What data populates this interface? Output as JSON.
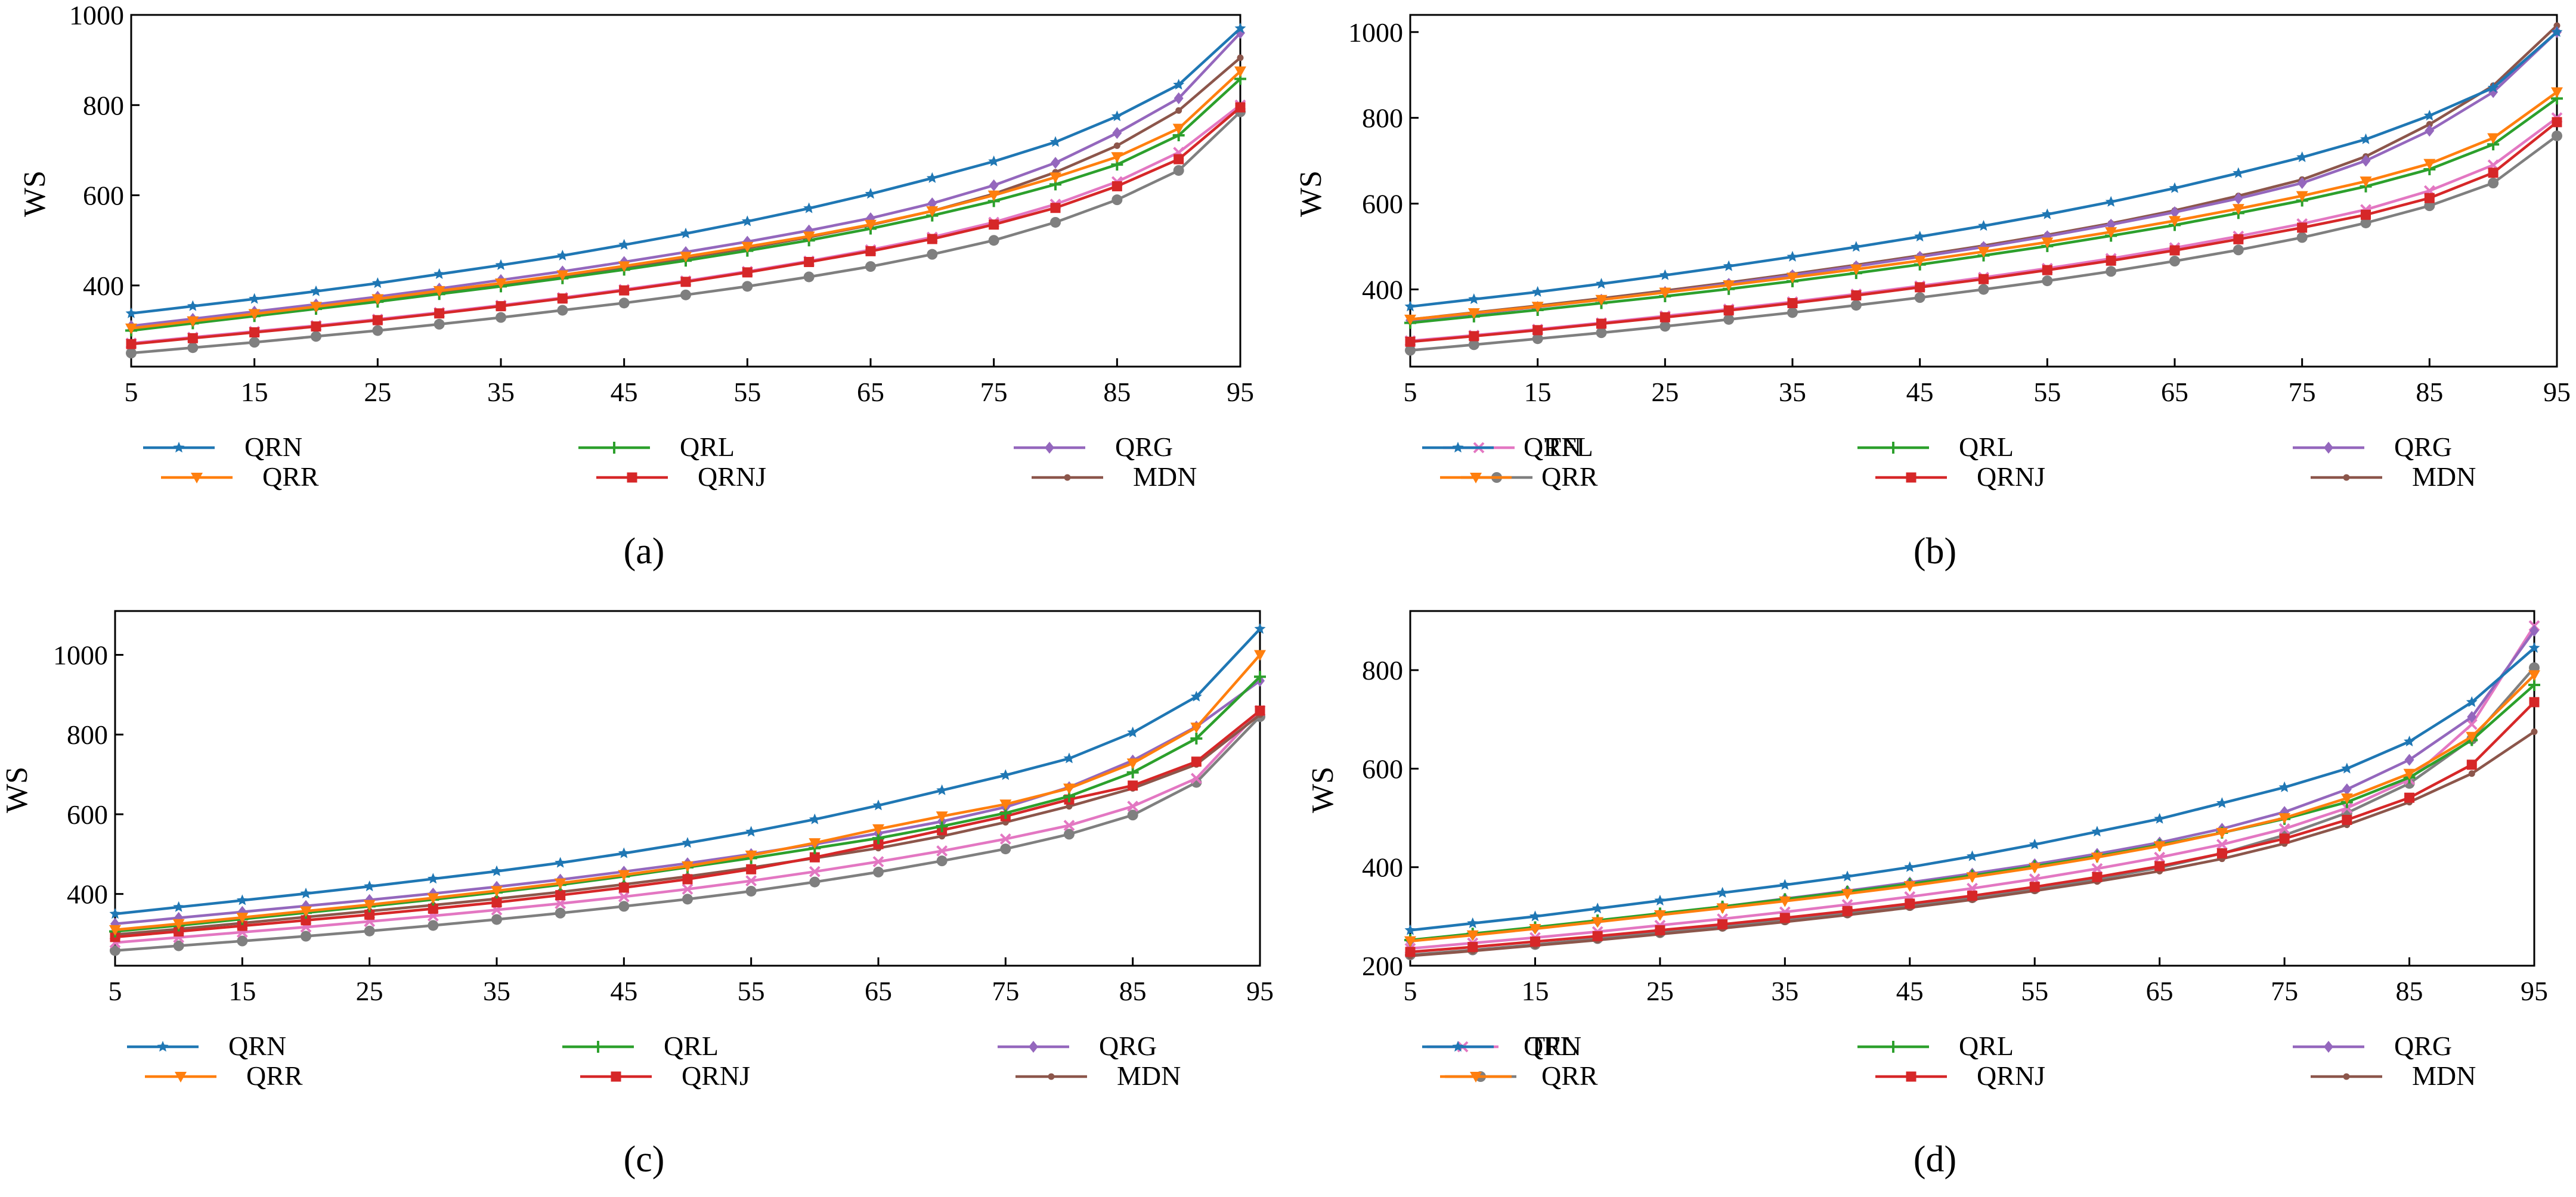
{
  "figure": {
    "panel_labels": [
      "(a)",
      "(b)",
      "(c)",
      "(d)"
    ]
  },
  "legend": {
    "entries": [
      {
        "name": "QRN",
        "color": "#1f77b4",
        "marker": "star"
      },
      {
        "name": "QRR",
        "color": "#ff7f0e",
        "marker": "triangle-down"
      },
      {
        "name": "QRL",
        "color": "#2ca02c",
        "marker": "plus"
      },
      {
        "name": "QRNJ",
        "color": "#d62728",
        "marker": "square"
      },
      {
        "name": "QRG",
        "color": "#9467bd",
        "marker": "diamond"
      },
      {
        "name": "MDN",
        "color": "#8c564b",
        "marker": "dot"
      },
      {
        "name": "TFL",
        "color": "#e377c2",
        "marker": "x"
      },
      {
        "name": "",
        "color": "#7f7f7f",
        "marker": "circle"
      }
    ]
  },
  "chart_data": [
    {
      "type": "line",
      "panel": "(a)",
      "xlabel": "",
      "ylabel": "WS",
      "x": [
        5,
        10,
        15,
        20,
        25,
        30,
        35,
        40,
        45,
        50,
        55,
        60,
        65,
        70,
        75,
        80,
        85,
        90,
        95
      ],
      "xlim": [
        5,
        95
      ],
      "ylim": [
        220,
        1000
      ],
      "xticks": [
        5,
        15,
        25,
        35,
        45,
        55,
        65,
        75,
        85,
        95
      ],
      "yticks": [
        400,
        600,
        800,
        1000
      ],
      "series": [
        {
          "name": "QRN",
          "values": [
            338,
            354,
            370,
            387,
            405,
            425,
            445,
            466,
            490,
            515,
            542,
            571,
            603,
            638,
            675,
            718,
            775,
            845,
            970
          ]
        },
        {
          "name": "QRR",
          "values": [
            305,
            321,
            337,
            353,
            370,
            388,
            405,
            423,
            443,
            464,
            486,
            509,
            535,
            565,
            600,
            640,
            685,
            748,
            875
          ]
        },
        {
          "name": "QRL",
          "values": [
            300,
            316,
            332,
            348,
            364,
            381,
            398,
            416,
            435,
            455,
            477,
            500,
            526,
            555,
            587,
            624,
            668,
            733,
            858
          ]
        },
        {
          "name": "QRNJ",
          "values": [
            270,
            283,
            296,
            309,
            323,
            338,
            354,
            371,
            389,
            408,
            429,
            452,
            476,
            503,
            535,
            572,
            620,
            680,
            795
          ]
        },
        {
          "name": "QRG",
          "values": [
            310,
            326,
            342,
            358,
            375,
            393,
            412,
            431,
            452,
            474,
            497,
            522,
            549,
            582,
            622,
            672,
            738,
            815,
            960
          ]
        },
        {
          "name": "MDN",
          "values": [
            303,
            318,
            334,
            350,
            366,
            384,
            402,
            420,
            440,
            461,
            483,
            507,
            534,
            565,
            603,
            651,
            710,
            788,
            905
          ]
        },
        {
          "name": "TFL",
          "values": [
            272,
            285,
            298,
            311,
            325,
            340,
            356,
            373,
            391,
            410,
            431,
            454,
            479,
            507,
            540,
            580,
            630,
            695,
            800
          ]
        },
        {
          "name": "",
          "values": [
            250,
            262,
            274,
            287,
            300,
            314,
            329,
            345,
            361,
            379,
            398,
            419,
            442,
            469,
            500,
            540,
            590,
            655,
            785
          ]
        }
      ]
    },
    {
      "type": "line",
      "panel": "(b)",
      "xlabel": "",
      "ylabel": "WS",
      "x": [
        5,
        10,
        15,
        20,
        25,
        30,
        35,
        40,
        45,
        50,
        55,
        60,
        65,
        70,
        75,
        80,
        85,
        90,
        95
      ],
      "xlim": [
        5,
        95
      ],
      "ylim": [
        220,
        1040
      ],
      "xticks": [
        5,
        15,
        25,
        35,
        45,
        55,
        65,
        75,
        85,
        95
      ],
      "yticks": [
        400,
        600,
        800,
        1000
      ],
      "series": [
        {
          "name": "QRN",
          "values": [
            360,
            377,
            394,
            413,
            433,
            454,
            476,
            499,
            523,
            548,
            575,
            604,
            636,
            671,
            708,
            750,
            805,
            870,
            1000
          ]
        },
        {
          "name": "QRR",
          "values": [
            330,
            345,
            360,
            376,
            393,
            410,
            428,
            447,
            467,
            488,
            510,
            534,
            560,
            588,
            618,
            652,
            693,
            753,
            860
          ]
        },
        {
          "name": "QRL",
          "values": [
            322,
            337,
            352,
            368,
            384,
            401,
            419,
            438,
            458,
            479,
            501,
            525,
            550,
            578,
            607,
            640,
            680,
            738,
            845
          ]
        },
        {
          "name": "QRNJ",
          "values": [
            278,
            291,
            305,
            320,
            335,
            351,
            368,
            386,
            405,
            424,
            445,
            467,
            491,
            517,
            544,
            574,
            613,
            672,
            790
          ]
        },
        {
          "name": "QRG",
          "values": [
            328,
            343,
            359,
            376,
            394,
            413,
            433,
            454,
            476,
            499,
            524,
            551,
            580,
            612,
            648,
            700,
            770,
            860,
            1000
          ]
        },
        {
          "name": "MDN",
          "values": [
            330,
            346,
            362,
            379,
            397,
            416,
            436,
            457,
            479,
            502,
            527,
            554,
            584,
            618,
            656,
            710,
            785,
            875,
            1015
          ]
        },
        {
          "name": "TFL",
          "values": [
            280,
            293,
            307,
            322,
            338,
            354,
            371,
            389,
            408,
            428,
            449,
            472,
            497,
            524,
            553,
            586,
            630,
            690,
            800
          ]
        },
        {
          "name": "",
          "values": [
            258,
            271,
            285,
            299,
            314,
            330,
            346,
            363,
            381,
            400,
            420,
            442,
            466,
            492,
            521,
            555,
            595,
            648,
            758
          ]
        }
      ]
    },
    {
      "type": "line",
      "panel": "(c)",
      "xlabel": "",
      "ylabel": "WS",
      "x": [
        5,
        10,
        15,
        20,
        25,
        30,
        35,
        40,
        45,
        50,
        55,
        60,
        65,
        70,
        75,
        80,
        85,
        90,
        95
      ],
      "xlim": [
        5,
        95
      ],
      "ylim": [
        220,
        1110
      ],
      "xticks": [
        5,
        15,
        25,
        35,
        45,
        55,
        65,
        75,
        85,
        95
      ],
      "yticks": [
        400,
        600,
        800,
        1000
      ],
      "series": [
        {
          "name": "QRN",
          "values": [
            350,
            367,
            384,
            401,
            419,
            438,
            457,
            478,
            502,
            528,
            556,
            587,
            622,
            660,
            698,
            740,
            805,
            895,
            1065
          ]
        },
        {
          "name": "QRR",
          "values": [
            310,
            325,
            341,
            357,
            373,
            390,
            408,
            427,
            448,
            470,
            497,
            528,
            563,
            595,
            625,
            665,
            728,
            818,
            1000
          ]
        },
        {
          "name": "QRL",
          "values": [
            306,
            321,
            337,
            353,
            369,
            386,
            404,
            423,
            444,
            467,
            490,
            515,
            540,
            570,
            603,
            645,
            705,
            790,
            945
          ]
        },
        {
          "name": "QRNJ",
          "values": [
            292,
            306,
            320,
            334,
            348,
            363,
            379,
            397,
            416,
            437,
            462,
            492,
            525,
            560,
            595,
            637,
            672,
            732,
            860
          ]
        },
        {
          "name": "QRG",
          "values": [
            325,
            340,
            355,
            370,
            385,
            401,
            418,
            436,
            456,
            477,
            500,
            525,
            552,
            582,
            618,
            668,
            735,
            820,
            935
          ]
        },
        {
          "name": "MDN",
          "values": [
            298,
            312,
            327,
            342,
            357,
            372,
            388,
            405,
            424,
            444,
            466,
            490,
            515,
            545,
            580,
            620,
            665,
            725,
            850
          ]
        },
        {
          "name": "TFL",
          "values": [
            278,
            291,
            304,
            317,
            331,
            345,
            360,
            376,
            393,
            412,
            433,
            456,
            481,
            508,
            538,
            572,
            620,
            690,
            860
          ]
        },
        {
          "name": "",
          "values": [
            258,
            270,
            282,
            294,
            307,
            321,
            336,
            352,
            369,
            387,
            407,
            430,
            455,
            483,
            513,
            550,
            598,
            680,
            845
          ]
        }
      ]
    },
    {
      "type": "line",
      "panel": "(d)",
      "xlabel": "",
      "ylabel": "WS",
      "x": [
        5,
        10,
        15,
        20,
        25,
        30,
        35,
        40,
        45,
        50,
        55,
        60,
        65,
        70,
        75,
        80,
        85,
        90,
        95
      ],
      "xlim": [
        5,
        95
      ],
      "ylim": [
        200,
        920
      ],
      "xticks": [
        5,
        15,
        25,
        35,
        45,
        55,
        65,
        75,
        85,
        95
      ],
      "yticks": [
        200,
        400,
        600,
        800
      ],
      "series": [
        {
          "name": "QRN",
          "values": [
            272,
            286,
            300,
            316,
            332,
            348,
            364,
            381,
            400,
            422,
            446,
            472,
            498,
            530,
            562,
            600,
            655,
            735,
            845
          ]
        },
        {
          "name": "QRR",
          "values": [
            250,
            262,
            275,
            289,
            303,
            317,
            331,
            346,
            362,
            380,
            399,
            420,
            443,
            470,
            500,
            540,
            590,
            665,
            790
          ]
        },
        {
          "name": "QRL",
          "values": [
            252,
            265,
            278,
            292,
            306,
            320,
            335,
            350,
            366,
            383,
            402,
            422,
            445,
            470,
            498,
            532,
            582,
            658,
            770
          ]
        },
        {
          "name": "QRNJ",
          "values": [
            228,
            238,
            249,
            260,
            272,
            284,
            297,
            311,
            326,
            342,
            360,
            380,
            402,
            428,
            458,
            496,
            541,
            608,
            735
          ]
        },
        {
          "name": "QRG",
          "values": [
            250,
            263,
            276,
            290,
            305,
            320,
            336,
            352,
            369,
            387,
            406,
            427,
            450,
            478,
            512,
            558,
            618,
            705,
            880
          ]
        },
        {
          "name": "MDN",
          "values": [
            220,
            230,
            241,
            252,
            264,
            276,
            289,
            303,
            318,
            334,
            352,
            371,
            392,
            417,
            448,
            486,
            532,
            590,
            675
          ]
        },
        {
          "name": "TFL",
          "values": [
            235,
            246,
            257,
            269,
            282,
            295,
            309,
            324,
            340,
            357,
            376,
            397,
            420,
            446,
            478,
            520,
            578,
            690,
            890
          ]
        },
        {
          "name": "",
          "values": [
            222,
            232,
            243,
            255,
            267,
            280,
            293,
            307,
            322,
            338,
            356,
            376,
            399,
            428,
            465,
            510,
            570,
            660,
            805
          ]
        }
      ]
    }
  ]
}
